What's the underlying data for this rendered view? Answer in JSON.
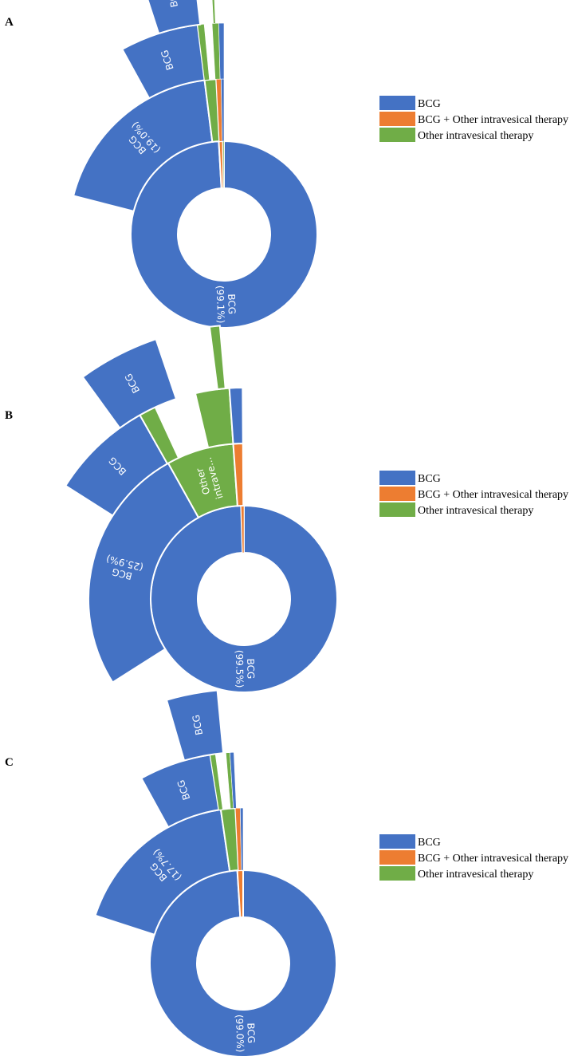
{
  "colors": {
    "BCG": "#4472C4",
    "BCG + Other intravesical therapy": "#ED7D31",
    "Other intravesical therapy": "#70AD47"
  },
  "chart_data": [
    {
      "type": "sunburst",
      "panel": "A",
      "legend": [
        "BCG",
        "BCG + Other intravesical therapy",
        "Other intravesical therapy"
      ],
      "rings": [
        [
          {
            "name": "BCG",
            "label": "BCG (99.1%)",
            "value": 99.1,
            "cat": "BCG"
          },
          {
            "name": "BCG + Other intravesical therapy",
            "value": 0.7,
            "cat": "BCG + Other intravesical therapy"
          },
          {
            "name": "Other intravesical therapy",
            "value": 0.2,
            "cat": "Other intravesical therapy"
          }
        ],
        [
          {
            "name": "gap",
            "value": 79.0
          },
          {
            "name": "BCG",
            "label": "BCG (19.0%)",
            "value": 19.0,
            "cat": "BCG"
          },
          {
            "name": "Other intravesical therapy",
            "value": 1.2,
            "cat": "Other intravesical therapy"
          },
          {
            "name": "BCG + Other intravesical therapy",
            "value": 0.5,
            "cat": "BCG + Other intravesical therapy"
          },
          {
            "name": "BCG",
            "value": 0.3,
            "cat": "BCG"
          }
        ],
        [
          {
            "name": "gap",
            "value": 92.0
          },
          {
            "name": "BCG",
            "label": "BCG",
            "value": 6.0,
            "cat": "BCG"
          },
          {
            "name": "Other intravesical therapy",
            "value": 0.5,
            "cat": "Other intravesical therapy"
          },
          {
            "name": "gap",
            "value": 0.6
          },
          {
            "name": "Other intravesical therapy",
            "value": 0.5,
            "cat": "Other intravesical therapy"
          },
          {
            "name": "BCG",
            "value": 0.4,
            "cat": "BCG"
          }
        ],
        [
          {
            "name": "gap",
            "value": 95.0
          },
          {
            "name": "BCG",
            "label": "BCG",
            "value": 3.2,
            "cat": "BCG"
          },
          {
            "name": "gap",
            "value": 1.0
          },
          {
            "name": "Other intravesical therapy",
            "value": 0.15,
            "cat": "Other intravesical therapy"
          }
        ]
      ]
    },
    {
      "type": "sunburst",
      "panel": "B",
      "legend": [
        "BCG",
        "BCG + Other intravesical therapy",
        "Other intravesical therapy"
      ],
      "rings": [
        [
          {
            "name": "BCG",
            "label": "BCG (99.5%)",
            "value": 99.5,
            "cat": "BCG"
          },
          {
            "name": "BCG + Other intravesical therapy",
            "value": 0.5,
            "cat": "BCG + Other intravesical therapy"
          }
        ],
        [
          {
            "name": "gap",
            "value": 66.0
          },
          {
            "name": "BCG",
            "label": "BCG (25.9%)",
            "value": 25.9,
            "cat": "BCG"
          },
          {
            "name": "Other intravesical therapy",
            "label": "Other intrave...",
            "value": 7.0,
            "cat": "Other intravesical therapy"
          },
          {
            "name": "BCG + Other intravesical therapy",
            "value": 1.0,
            "cat": "BCG + Other intravesical therapy"
          }
        ],
        [
          {
            "name": "gap",
            "value": 84.0
          },
          {
            "name": "BCG",
            "label": "BCG",
            "value": 7.8,
            "cat": "BCG"
          },
          {
            "name": "Other intravesical therapy",
            "value": 1.3,
            "cat": "Other intravesical therapy"
          },
          {
            "name": "gap",
            "value": 3.2
          },
          {
            "name": "Other intravesical therapy",
            "value": 2.6,
            "cat": "Other intravesical therapy"
          },
          {
            "name": "BCG",
            "value": 1.0,
            "cat": "BCG"
          }
        ],
        [
          {
            "name": "gap",
            "value": 90.0
          },
          {
            "name": "BCG",
            "label": "BCG",
            "value": 4.8,
            "cat": "BCG"
          },
          {
            "name": "gap",
            "value": 3.2
          },
          {
            "name": "Other intravesical therapy",
            "value": 0.6,
            "cat": "Other intravesical therapy"
          }
        ]
      ]
    },
    {
      "type": "sunburst",
      "panel": "C",
      "legend": [
        "BCG",
        "BCG + Other intravesical therapy",
        "Other intravesical therapy"
      ],
      "rings": [
        [
          {
            "name": "BCG",
            "label": "BCG (99.0%)",
            "value": 99.0,
            "cat": "BCG"
          },
          {
            "name": "BCG + Other intravesical therapy",
            "value": 1.0,
            "cat": "BCG + Other intravesical therapy"
          }
        ],
        [
          {
            "name": "gap",
            "value": 80.0
          },
          {
            "name": "BCG",
            "label": "BCG (17.7%)",
            "value": 17.7,
            "cat": "BCG"
          },
          {
            "name": "Other intravesical therapy",
            "value": 1.5,
            "cat": "Other intravesical therapy"
          },
          {
            "name": "BCG + Other intravesical therapy",
            "value": 0.5,
            "cat": "BCG + Other intravesical therapy"
          },
          {
            "name": "BCG",
            "value": 0.3,
            "cat": "BCG"
          }
        ],
        [
          {
            "name": "gap",
            "value": 92.0
          },
          {
            "name": "BCG",
            "label": "BCG",
            "value": 5.5,
            "cat": "BCG"
          },
          {
            "name": "Other intravesical therapy",
            "value": 0.4,
            "cat": "Other intravesical therapy"
          },
          {
            "name": "gap",
            "value": 0.8
          },
          {
            "name": "Other intravesical therapy",
            "value": 0.3,
            "cat": "Other intravesical therapy"
          },
          {
            "name": "BCG",
            "value": 0.3,
            "cat": "BCG"
          }
        ],
        [
          {
            "name": "gap",
            "value": 95.5
          },
          {
            "name": "BCG",
            "label": "BCG",
            "value": 3.0,
            "cat": "BCG"
          }
        ]
      ]
    }
  ]
}
